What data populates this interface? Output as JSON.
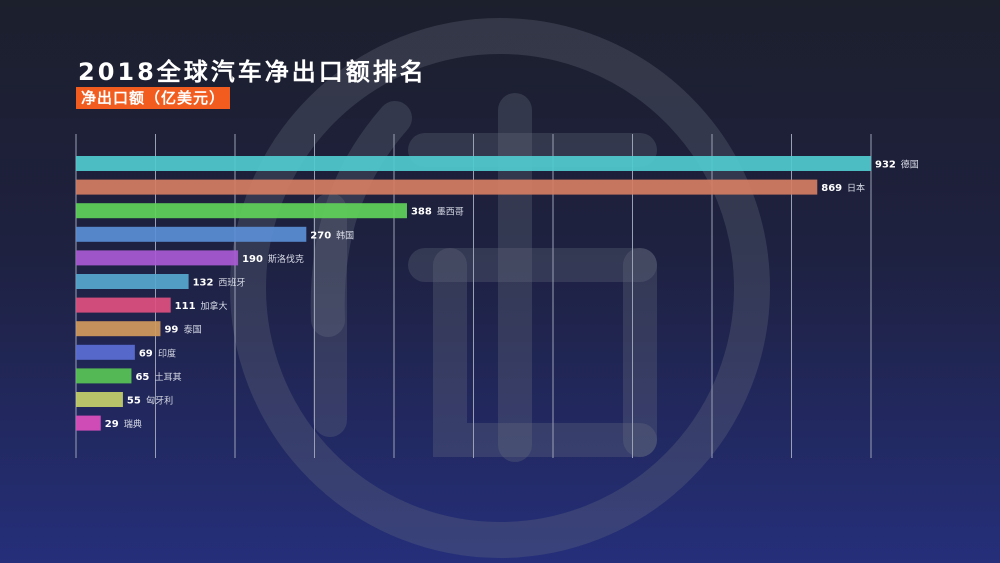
{
  "header": {
    "title": "2018全球汽车净出口额排名",
    "subtitle": "净出口额（亿美元）"
  },
  "colors": {
    "grid": "#9aa0b4",
    "value_label": "#ffffff",
    "category_label": "#d8dbe6"
  },
  "chart_data": {
    "type": "bar",
    "orientation": "horizontal",
    "title": "2018全球汽车净出口额排名",
    "subtitle": "净出口额（亿美元）",
    "categories": [
      "德国",
      "日本",
      "墨西哥",
      "韩国",
      "斯洛伐克",
      "西班牙",
      "加拿大",
      "泰国",
      "印度",
      "土耳其",
      "匈牙利",
      "瑞典"
    ],
    "values": [
      932,
      869,
      388,
      270,
      190,
      132,
      111,
      99,
      69,
      65,
      55,
      29
    ],
    "bar_colors": [
      "#4fcbcf",
      "#d57d62",
      "#5fd35a",
      "#5b8fd6",
      "#a85ad2",
      "#56a8cf",
      "#e0507f",
      "#d29a5c",
      "#5b6fd6",
      "#59c555",
      "#c5d06a",
      "#de4fbf"
    ],
    "xlim": [
      0,
      932
    ],
    "x_gridlines": [
      0,
      93.2,
      186.4,
      279.6,
      372.8,
      466,
      559.2,
      652.4,
      745.6,
      838.8,
      932
    ],
    "xlabel": "",
    "ylabel": "",
    "grid": true,
    "legend": "none"
  }
}
